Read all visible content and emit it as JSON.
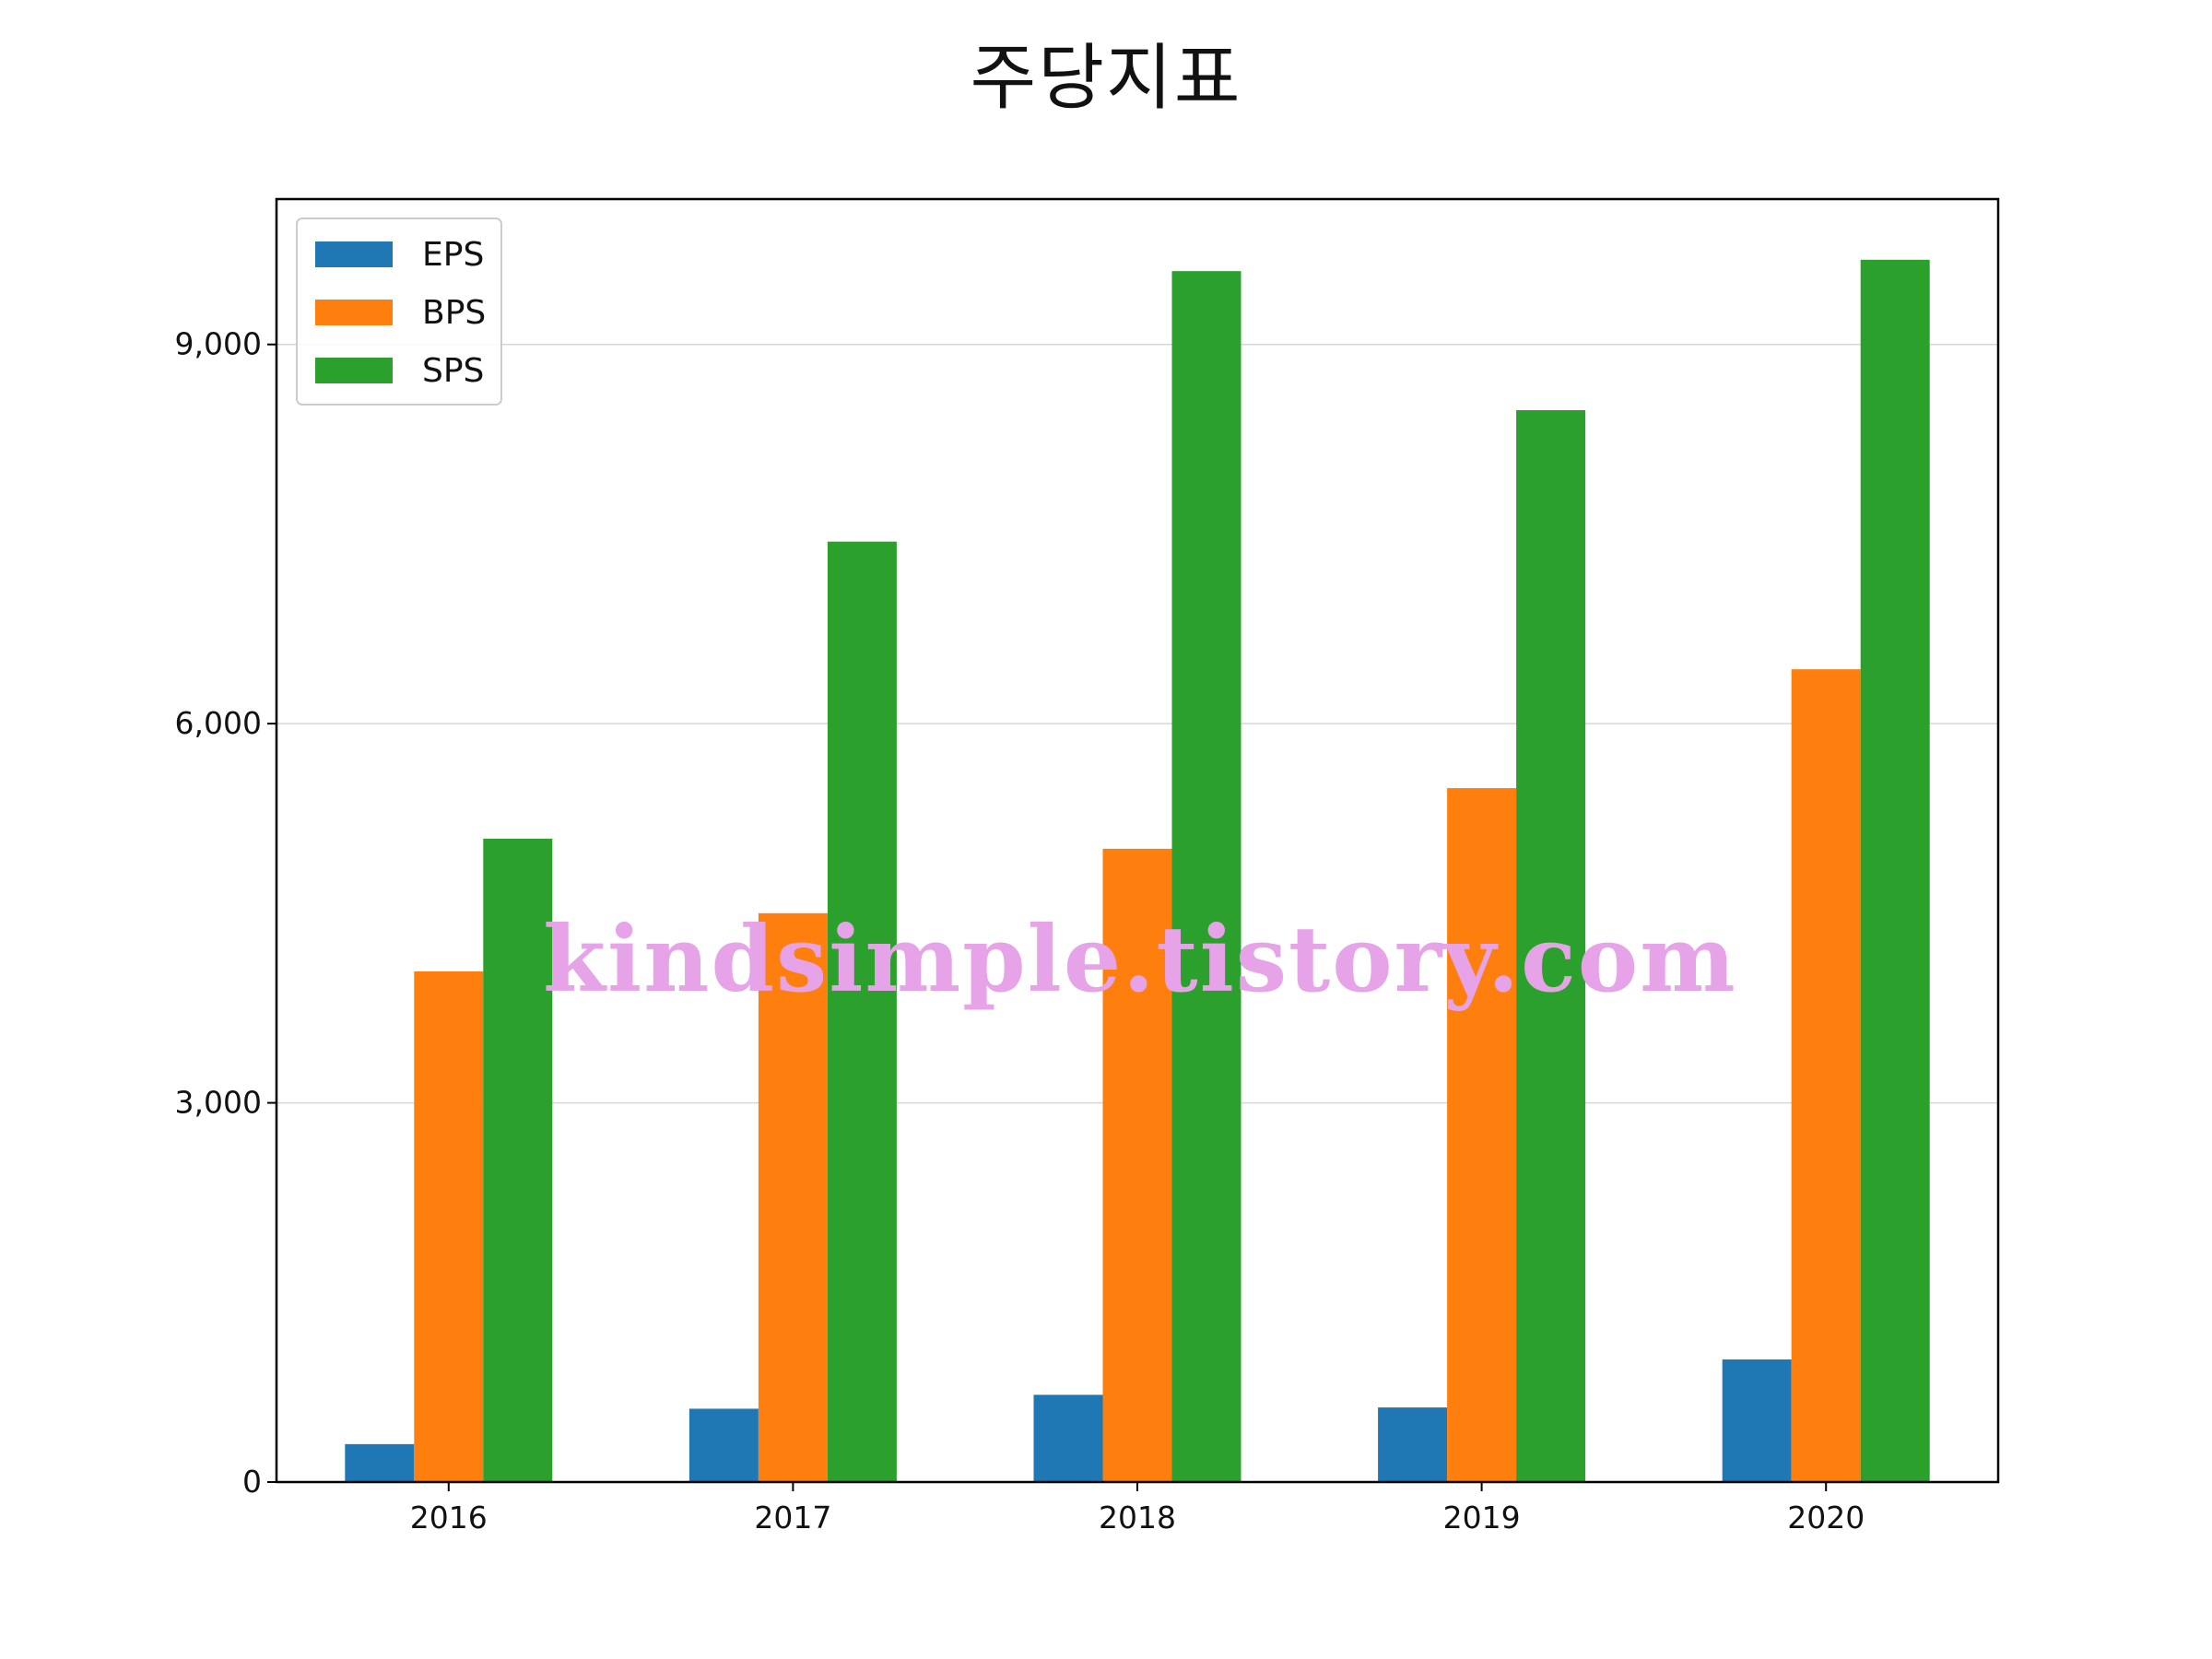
{
  "chart_data": {
    "type": "bar",
    "title": "주당지표",
    "xlabel": "",
    "ylabel": "",
    "categories": [
      "2016",
      "2017",
      "2018",
      "2019",
      "2020"
    ],
    "series": [
      {
        "name": "EPS",
        "color": "#1f77b4",
        "values": [
          300,
          580,
          690,
          590,
          970
        ]
      },
      {
        "name": "BPS",
        "color": "#ff7f0e",
        "values": [
          4040,
          4500,
          5010,
          5490,
          6430
        ]
      },
      {
        "name": "SPS",
        "color": "#2ca02c",
        "values": [
          5090,
          7440,
          9580,
          8480,
          9670
        ]
      }
    ],
    "ylim": [
      0,
      10150
    ],
    "yticks": [
      0,
      3000,
      6000,
      9000
    ],
    "ytick_labels": [
      "0",
      "3,000",
      "6,000",
      "9,000"
    ],
    "grid": "y",
    "legend_position": "top-left",
    "watermark": "kindsimple.tistory.com"
  }
}
